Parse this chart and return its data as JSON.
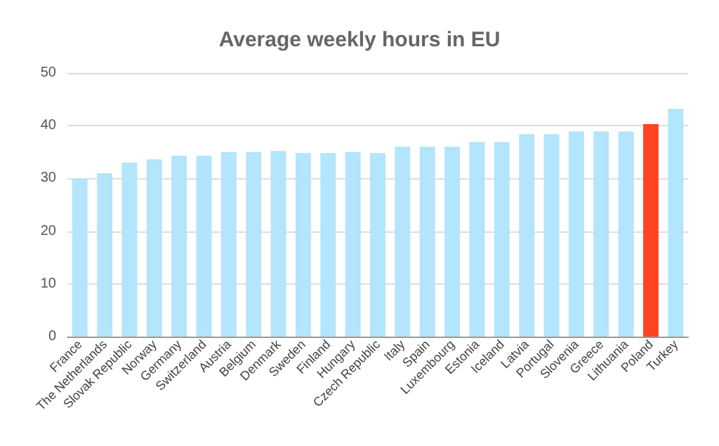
{
  "chart_data": {
    "type": "bar",
    "title": "Average weekly hours in EU",
    "categories": [
      "France",
      "The Netherlands",
      "Slovak Republic",
      "Norway",
      "Germany",
      "Switzerland",
      "Austria",
      "Belgium",
      "Denmark",
      "Sweden",
      "Finland",
      "Hungary",
      "Czech Republic",
      "Italy",
      "Spain",
      "Luxembourg",
      "Estonia",
      "Iceland",
      "Latvia",
      "Portugal",
      "Slovenia",
      "Greece",
      "Lithuania",
      "Poland",
      "Turkey"
    ],
    "values": [
      30.0,
      31.0,
      33.0,
      33.6,
      34.3,
      34.3,
      35.0,
      35.0,
      35.2,
      34.8,
      34.8,
      35.0,
      34.8,
      36.0,
      36.0,
      36.0,
      36.9,
      36.9,
      38.4,
      38.4,
      38.9,
      38.9,
      38.9,
      40.3,
      43.2
    ],
    "colors": [
      "#b3e5fc",
      "#b3e5fc",
      "#b3e5fc",
      "#b3e5fc",
      "#b3e5fc",
      "#b3e5fc",
      "#b3e5fc",
      "#b3e5fc",
      "#b3e5fc",
      "#b3e5fc",
      "#b3e5fc",
      "#b3e5fc",
      "#b3e5fc",
      "#b3e5fc",
      "#b3e5fc",
      "#b3e5fc",
      "#b3e5fc",
      "#b3e5fc",
      "#b3e5fc",
      "#b3e5fc",
      "#b3e5fc",
      "#b3e5fc",
      "#b3e5fc",
      "#ff4422",
      "#b3e5fc"
    ],
    "ylim": [
      0,
      50
    ],
    "yticks": [
      0,
      10,
      20,
      30,
      40,
      50
    ],
    "grid": "y"
  }
}
